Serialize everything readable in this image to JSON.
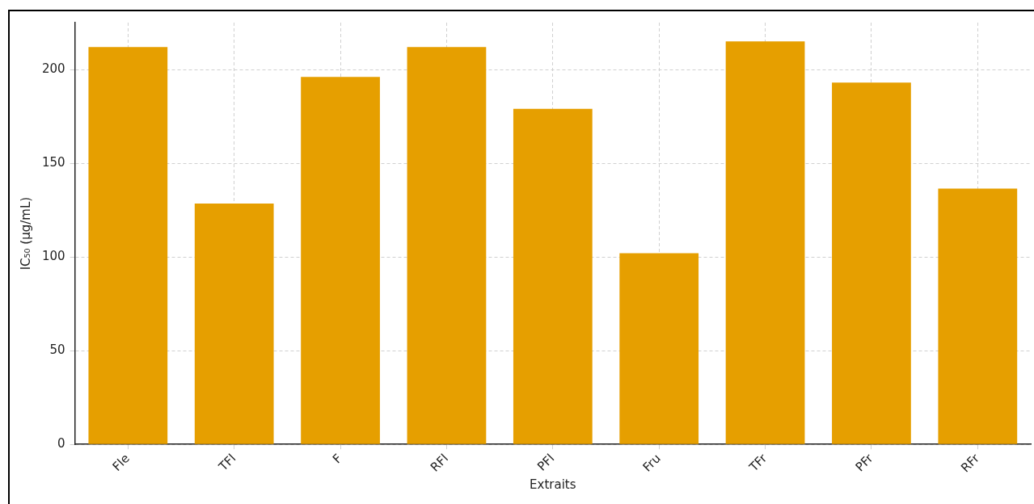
{
  "chart_data": {
    "type": "bar",
    "xlabel": "Extraits",
    "ylabel": "IC₅₀ (µg/mL)",
    "categories": [
      "Fle",
      "TFl",
      "F",
      "RFl",
      "PFl",
      "Fru",
      "TFr",
      "PFr",
      "RFr"
    ],
    "values": [
      212,
      128.5,
      196,
      212,
      179,
      102,
      215,
      193,
      136.5
    ],
    "color": "#e69f00",
    "ylim": [
      0,
      225
    ],
    "yticks": [
      0,
      50,
      100,
      150,
      200
    ],
    "grid": true
  }
}
